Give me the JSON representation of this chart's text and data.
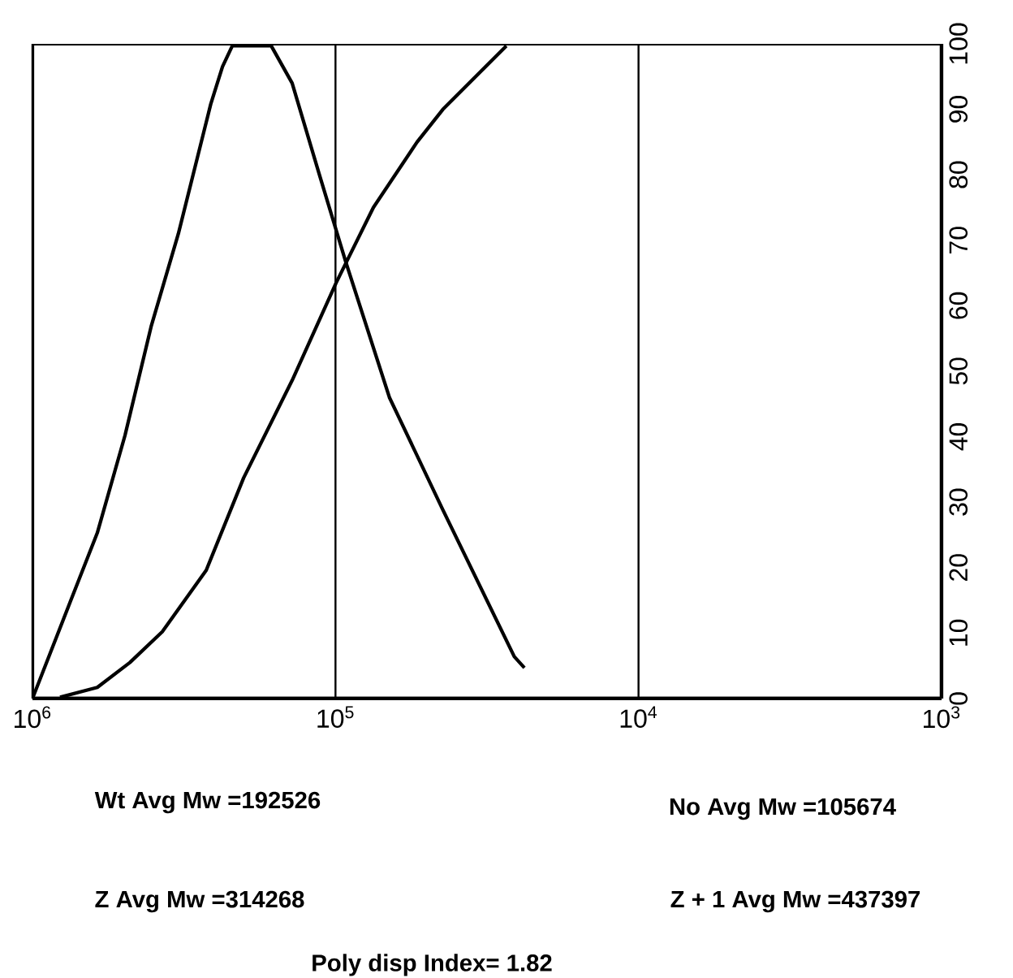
{
  "chart_data": {
    "type": "line",
    "log": "x",
    "grid": "x",
    "xlim": [
      1000000,
      1000
    ],
    "xticks": [
      {
        "value": 1000000,
        "label": "10$^{6}$"
      },
      {
        "value": 100000,
        "label": "10$^{5}$"
      },
      {
        "value": 10000,
        "label": "10$^{4}$"
      },
      {
        "value": 1000,
        "label": "10$^{3}$"
      }
    ],
    "ylim": [
      0,
      100
    ],
    "yticks": [
      0,
      10,
      20,
      30,
      40,
      50,
      60,
      70,
      80,
      90,
      100
    ],
    "series": [
      {
        "color": "#000000",
        "x": [
          1000000,
          753000,
          611000,
          495000,
          406000,
          330000,
          258000,
          236000,
          219000,
          163000,
          139000,
          113000,
          92500,
          66400,
          44200,
          25700,
          23800
        ],
        "values": [
          0,
          14.6,
          25.3,
          40.2,
          56.8,
          71,
          90.8,
          96.5,
          99.7,
          99.7,
          94,
          80,
          66.7,
          46,
          28.8,
          6.4,
          4.7
        ]
      },
      {
        "color": "#000000",
        "x": [
          811000,
          611000,
          477000,
          373000,
          267000,
          201000,
          139000,
          99500,
          75000,
          53800,
          44200,
          27300
        ],
        "values": [
          0.2,
          1.7,
          5.5,
          10.2,
          19.6,
          33.7,
          48.6,
          63.5,
          75,
          85,
          90,
          99.7
        ]
      }
    ],
    "annotations": [
      "Wt Avg Mw  =192526",
      "No Avg Mw  =105674",
      "Z Avg Mw  =314268",
      "Z + 1 Avg Mw  =437397",
      "Poly disp Index= 1.82"
    ]
  }
}
